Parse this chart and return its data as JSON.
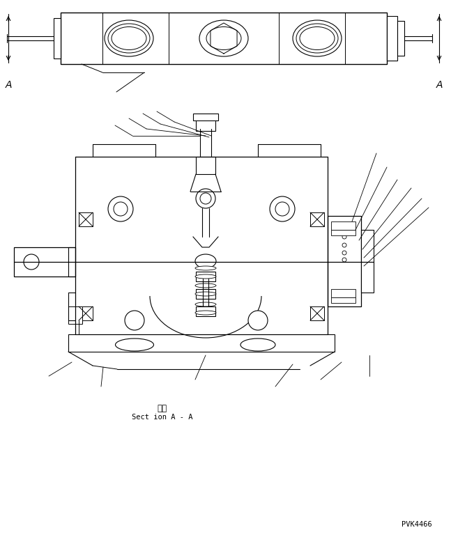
{
  "bg_color": "#ffffff",
  "line_color": "#000000",
  "fig_width": 6.47,
  "fig_height": 7.71,
  "dpi": 100,
  "text_section_japanese": "断面",
  "text_section_english": "Sect ion A - A",
  "text_watermark": "PVK4466",
  "label_A_left": "A",
  "label_A_right": "A"
}
